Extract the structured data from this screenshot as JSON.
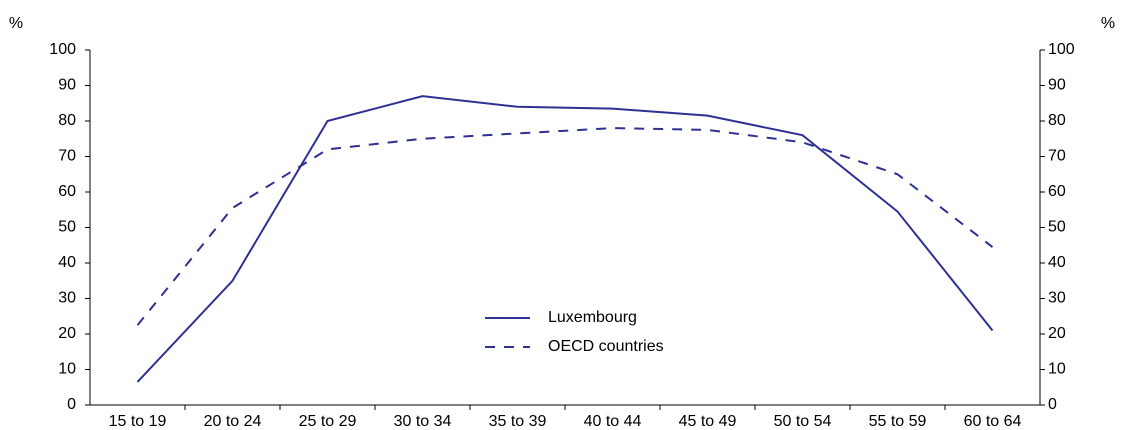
{
  "chart_data": {
    "type": "line",
    "y_label": "%",
    "y2_label": "%",
    "categories": [
      "15 to 19",
      "20 to 24",
      "25 to 29",
      "30 to 34",
      "35 to 39",
      "40 to 44",
      "45 to 49",
      "50 to 54",
      "55 to 59",
      "60 to 64"
    ],
    "series": [
      {
        "name": "Luxembourg",
        "color": "#2e3192",
        "style": "solid",
        "values": [
          6.5,
          35,
          80,
          87,
          84,
          83.5,
          81.5,
          76,
          54.5,
          21
        ]
      },
      {
        "name": "OECD countries",
        "color": "#2e3192",
        "style": "dashed",
        "values": [
          22.5,
          55.5,
          72,
          75,
          76.5,
          78,
          77.5,
          74,
          65,
          44.5
        ]
      }
    ],
    "ylim": [
      0,
      100
    ],
    "yticks": [
      0,
      10,
      20,
      30,
      40,
      50,
      60,
      70,
      80,
      90,
      100
    ],
    "y2lim": [
      0,
      100
    ],
    "y2ticks": [
      0,
      10,
      20,
      30,
      40,
      50,
      60,
      70,
      80,
      90,
      100
    ],
    "legend": "center"
  }
}
